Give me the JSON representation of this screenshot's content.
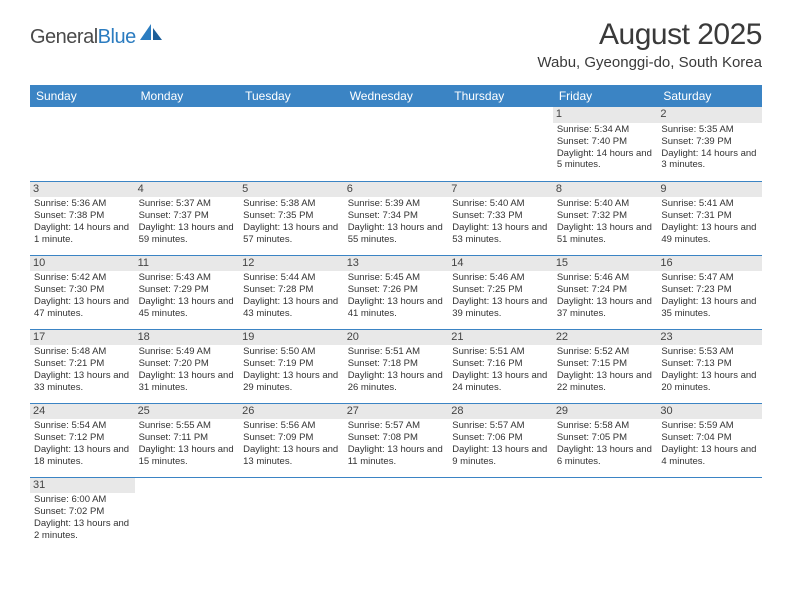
{
  "branding": {
    "word1": "General",
    "word2": "Blue"
  },
  "title": "August 2025",
  "location": "Wabu, Gyeonggi-do, South Korea",
  "weekdays": [
    "Sunday",
    "Monday",
    "Tuesday",
    "Wednesday",
    "Thursday",
    "Friday",
    "Saturday"
  ],
  "colors": {
    "header_bg": "#3b84c4",
    "header_fg": "#ffffff",
    "daynum_bg": "#e8e8e8",
    "rule": "#3b84c4",
    "text": "#333333",
    "logo_blue": "#2b7cc0",
    "logo_gray": "#4a4a4a"
  },
  "weeks": [
    [
      {
        "empty": true
      },
      {
        "empty": true
      },
      {
        "empty": true
      },
      {
        "empty": true
      },
      {
        "empty": true
      },
      {
        "day": "1",
        "sunrise": "Sunrise: 5:34 AM",
        "sunset": "Sunset: 7:40 PM",
        "daylight": "Daylight: 14 hours and 5 minutes."
      },
      {
        "day": "2",
        "sunrise": "Sunrise: 5:35 AM",
        "sunset": "Sunset: 7:39 PM",
        "daylight": "Daylight: 14 hours and 3 minutes."
      }
    ],
    [
      {
        "day": "3",
        "sunrise": "Sunrise: 5:36 AM",
        "sunset": "Sunset: 7:38 PM",
        "daylight": "Daylight: 14 hours and 1 minute."
      },
      {
        "day": "4",
        "sunrise": "Sunrise: 5:37 AM",
        "sunset": "Sunset: 7:37 PM",
        "daylight": "Daylight: 13 hours and 59 minutes."
      },
      {
        "day": "5",
        "sunrise": "Sunrise: 5:38 AM",
        "sunset": "Sunset: 7:35 PM",
        "daylight": "Daylight: 13 hours and 57 minutes."
      },
      {
        "day": "6",
        "sunrise": "Sunrise: 5:39 AM",
        "sunset": "Sunset: 7:34 PM",
        "daylight": "Daylight: 13 hours and 55 minutes."
      },
      {
        "day": "7",
        "sunrise": "Sunrise: 5:40 AM",
        "sunset": "Sunset: 7:33 PM",
        "daylight": "Daylight: 13 hours and 53 minutes."
      },
      {
        "day": "8",
        "sunrise": "Sunrise: 5:40 AM",
        "sunset": "Sunset: 7:32 PM",
        "daylight": "Daylight: 13 hours and 51 minutes."
      },
      {
        "day": "9",
        "sunrise": "Sunrise: 5:41 AM",
        "sunset": "Sunset: 7:31 PM",
        "daylight": "Daylight: 13 hours and 49 minutes."
      }
    ],
    [
      {
        "day": "10",
        "sunrise": "Sunrise: 5:42 AM",
        "sunset": "Sunset: 7:30 PM",
        "daylight": "Daylight: 13 hours and 47 minutes."
      },
      {
        "day": "11",
        "sunrise": "Sunrise: 5:43 AM",
        "sunset": "Sunset: 7:29 PM",
        "daylight": "Daylight: 13 hours and 45 minutes."
      },
      {
        "day": "12",
        "sunrise": "Sunrise: 5:44 AM",
        "sunset": "Sunset: 7:28 PM",
        "daylight": "Daylight: 13 hours and 43 minutes."
      },
      {
        "day": "13",
        "sunrise": "Sunrise: 5:45 AM",
        "sunset": "Sunset: 7:26 PM",
        "daylight": "Daylight: 13 hours and 41 minutes."
      },
      {
        "day": "14",
        "sunrise": "Sunrise: 5:46 AM",
        "sunset": "Sunset: 7:25 PM",
        "daylight": "Daylight: 13 hours and 39 minutes."
      },
      {
        "day": "15",
        "sunrise": "Sunrise: 5:46 AM",
        "sunset": "Sunset: 7:24 PM",
        "daylight": "Daylight: 13 hours and 37 minutes."
      },
      {
        "day": "16",
        "sunrise": "Sunrise: 5:47 AM",
        "sunset": "Sunset: 7:23 PM",
        "daylight": "Daylight: 13 hours and 35 minutes."
      }
    ],
    [
      {
        "day": "17",
        "sunrise": "Sunrise: 5:48 AM",
        "sunset": "Sunset: 7:21 PM",
        "daylight": "Daylight: 13 hours and 33 minutes."
      },
      {
        "day": "18",
        "sunrise": "Sunrise: 5:49 AM",
        "sunset": "Sunset: 7:20 PM",
        "daylight": "Daylight: 13 hours and 31 minutes."
      },
      {
        "day": "19",
        "sunrise": "Sunrise: 5:50 AM",
        "sunset": "Sunset: 7:19 PM",
        "daylight": "Daylight: 13 hours and 29 minutes."
      },
      {
        "day": "20",
        "sunrise": "Sunrise: 5:51 AM",
        "sunset": "Sunset: 7:18 PM",
        "daylight": "Daylight: 13 hours and 26 minutes."
      },
      {
        "day": "21",
        "sunrise": "Sunrise: 5:51 AM",
        "sunset": "Sunset: 7:16 PM",
        "daylight": "Daylight: 13 hours and 24 minutes."
      },
      {
        "day": "22",
        "sunrise": "Sunrise: 5:52 AM",
        "sunset": "Sunset: 7:15 PM",
        "daylight": "Daylight: 13 hours and 22 minutes."
      },
      {
        "day": "23",
        "sunrise": "Sunrise: 5:53 AM",
        "sunset": "Sunset: 7:13 PM",
        "daylight": "Daylight: 13 hours and 20 minutes."
      }
    ],
    [
      {
        "day": "24",
        "sunrise": "Sunrise: 5:54 AM",
        "sunset": "Sunset: 7:12 PM",
        "daylight": "Daylight: 13 hours and 18 minutes."
      },
      {
        "day": "25",
        "sunrise": "Sunrise: 5:55 AM",
        "sunset": "Sunset: 7:11 PM",
        "daylight": "Daylight: 13 hours and 15 minutes."
      },
      {
        "day": "26",
        "sunrise": "Sunrise: 5:56 AM",
        "sunset": "Sunset: 7:09 PM",
        "daylight": "Daylight: 13 hours and 13 minutes."
      },
      {
        "day": "27",
        "sunrise": "Sunrise: 5:57 AM",
        "sunset": "Sunset: 7:08 PM",
        "daylight": "Daylight: 13 hours and 11 minutes."
      },
      {
        "day": "28",
        "sunrise": "Sunrise: 5:57 AM",
        "sunset": "Sunset: 7:06 PM",
        "daylight": "Daylight: 13 hours and 9 minutes."
      },
      {
        "day": "29",
        "sunrise": "Sunrise: 5:58 AM",
        "sunset": "Sunset: 7:05 PM",
        "daylight": "Daylight: 13 hours and 6 minutes."
      },
      {
        "day": "30",
        "sunrise": "Sunrise: 5:59 AM",
        "sunset": "Sunset: 7:04 PM",
        "daylight": "Daylight: 13 hours and 4 minutes."
      }
    ],
    [
      {
        "day": "31",
        "sunrise": "Sunrise: 6:00 AM",
        "sunset": "Sunset: 7:02 PM",
        "daylight": "Daylight: 13 hours and 2 minutes."
      },
      {
        "empty": true
      },
      {
        "empty": true
      },
      {
        "empty": true
      },
      {
        "empty": true
      },
      {
        "empty": true
      },
      {
        "empty": true
      }
    ]
  ]
}
